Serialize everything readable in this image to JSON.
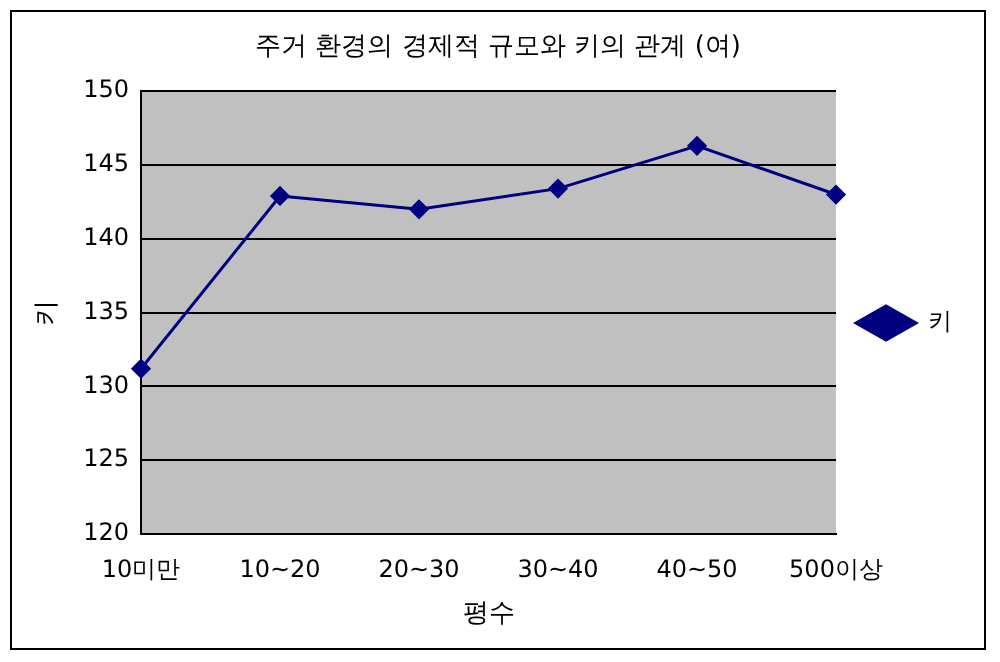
{
  "chart_data": {
    "type": "line",
    "title": "주거 환경의 경제적 규모와 키의 관계 (여)",
    "xlabel": "평수",
    "ylabel": "키",
    "categories": [
      "10미만",
      "10~20",
      "20~30",
      "30~40",
      "40~50",
      "500이상"
    ],
    "series": [
      {
        "name": "키",
        "color": "#000080",
        "values": [
          131.2,
          142.9,
          142.0,
          143.4,
          146.3,
          143.0
        ]
      }
    ],
    "ylim": [
      120,
      150
    ],
    "yticks": [
      120,
      125,
      130,
      135,
      140,
      145,
      150
    ],
    "grid": "y",
    "legend": "right",
    "marker": "diamond",
    "line_style": "solid"
  }
}
